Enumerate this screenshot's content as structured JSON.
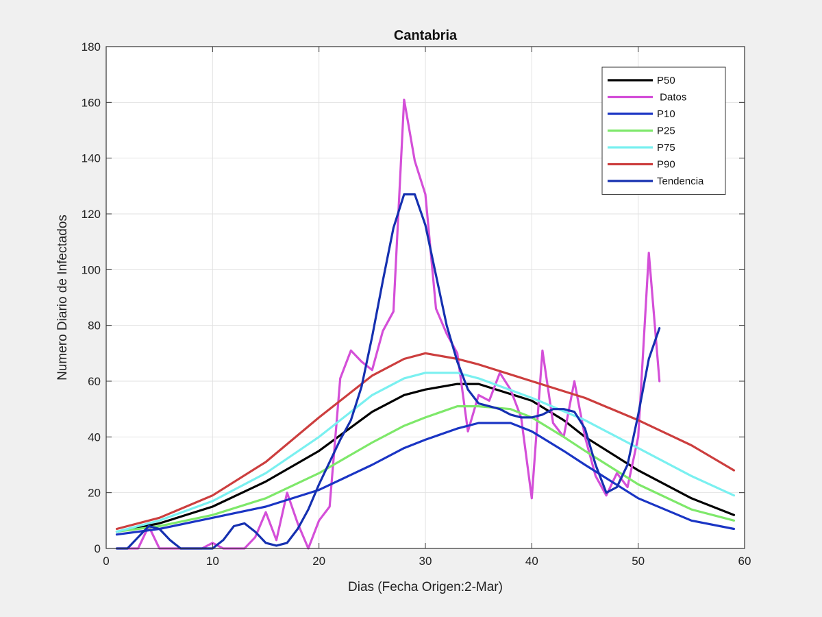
{
  "chart_data": {
    "type": "line",
    "title": "Cantabria",
    "xlabel": "Dias (Fecha Origen:2-Mar)",
    "ylabel": "Numero Diario de Infectados",
    "xlim": [
      0,
      60
    ],
    "ylim": [
      0,
      180
    ],
    "xticks": [
      0,
      10,
      20,
      30,
      40,
      50,
      60
    ],
    "yticks": [
      0,
      20,
      40,
      60,
      80,
      100,
      120,
      140,
      160,
      180
    ],
    "grid": true,
    "legend_position": "top-right",
    "series": [
      {
        "name": "P50",
        "color": "#000000",
        "x": [
          1,
          5,
          10,
          15,
          20,
          25,
          28,
          30,
          33,
          35,
          40,
          43,
          45,
          50,
          55,
          59
        ],
        "y": [
          6,
          9,
          15,
          24,
          35,
          49,
          55,
          57,
          59,
          59,
          53,
          46,
          40,
          28,
          18,
          12
        ]
      },
      {
        "name": " Datos",
        "color": "#d44fd8",
        "x": [
          1,
          2,
          3,
          4,
          5,
          6,
          7,
          8,
          9,
          10,
          11,
          12,
          13,
          14,
          15,
          16,
          17,
          18,
          19,
          20,
          21,
          22,
          23,
          24,
          25,
          26,
          27,
          28,
          29,
          30,
          31,
          32,
          33,
          34,
          35,
          36,
          37,
          38,
          39,
          40,
          41,
          42,
          43,
          44,
          45,
          46,
          47,
          48,
          49,
          50,
          51,
          52
        ],
        "y": [
          0,
          0,
          0,
          8,
          0,
          0,
          0,
          0,
          0,
          2,
          0,
          0,
          0,
          4,
          13,
          3,
          20,
          9,
          0,
          10,
          15,
          61,
          71,
          67,
          64,
          78,
          85,
          161,
          139,
          127,
          86,
          77,
          70,
          42,
          55,
          53,
          63,
          57,
          47,
          18,
          71,
          45,
          40,
          60,
          40,
          26,
          19,
          27,
          22,
          40,
          106,
          60
        ]
      },
      {
        "name": "P10",
        "color": "#1a35c4",
        "x": [
          1,
          5,
          10,
          15,
          20,
          25,
          28,
          30,
          33,
          35,
          38,
          40,
          43,
          45,
          50,
          55,
          59
        ],
        "y": [
          5,
          7,
          11,
          15,
          21,
          30,
          36,
          39,
          43,
          45,
          45,
          42,
          35,
          30,
          18,
          10,
          7
        ]
      },
      {
        "name": "P25",
        "color": "#7ee86a",
        "x": [
          1,
          5,
          10,
          15,
          20,
          25,
          28,
          30,
          33,
          35,
          38,
          40,
          43,
          45,
          50,
          55,
          59
        ],
        "y": [
          6,
          8,
          12,
          18,
          27,
          38,
          44,
          47,
          51,
          51,
          50,
          47,
          40,
          35,
          23,
          14,
          10
        ]
      },
      {
        "name": "P75",
        "color": "#7af0f0",
        "x": [
          1,
          5,
          10,
          15,
          20,
          25,
          28,
          30,
          33,
          35,
          40,
          45,
          50,
          55,
          59
        ],
        "y": [
          6,
          10,
          17,
          27,
          40,
          55,
          61,
          63,
          63,
          61,
          54,
          46,
          36,
          26,
          19
        ]
      },
      {
        "name": "P90",
        "color": "#cc3e3e",
        "x": [
          1,
          5,
          10,
          15,
          20,
          25,
          28,
          30,
          33,
          35,
          40,
          45,
          50,
          55,
          59
        ],
        "y": [
          7,
          11,
          19,
          31,
          47,
          62,
          68,
          70,
          68,
          66,
          60,
          54,
          46,
          37,
          28
        ]
      },
      {
        "name": "Tendencia",
        "color": "#1530b0",
        "x": [
          1,
          2,
          3,
          4,
          5,
          6,
          7,
          8,
          9,
          10,
          11,
          12,
          13,
          14,
          15,
          16,
          17,
          18,
          19,
          20,
          21,
          22,
          23,
          24,
          25,
          26,
          27,
          28,
          29,
          30,
          31,
          32,
          33,
          34,
          35,
          36,
          37,
          38,
          39,
          40,
          41,
          42,
          43,
          44,
          45,
          46,
          47,
          48,
          49,
          50,
          51,
          52
        ],
        "y": [
          0,
          0,
          4,
          8,
          7,
          3,
          0,
          0,
          0,
          0,
          3,
          8,
          9,
          6,
          2,
          1,
          2,
          7,
          14,
          23,
          31,
          39,
          46,
          58,
          76,
          96,
          115,
          127,
          127,
          116,
          98,
          80,
          67,
          57,
          52,
          51,
          50,
          48,
          47,
          47,
          48,
          50,
          50,
          49,
          43,
          30,
          20,
          22,
          30,
          48,
          68,
          79
        ]
      }
    ]
  }
}
